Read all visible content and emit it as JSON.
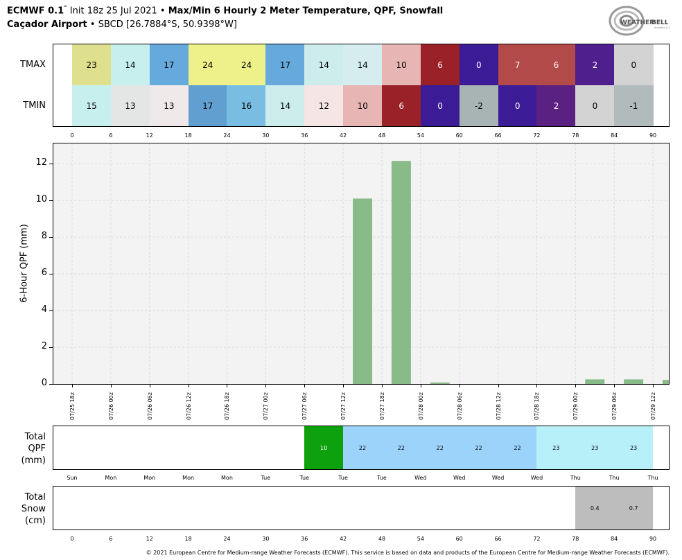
{
  "header": {
    "model": "ECMWF 0.1",
    "deg": "°",
    "init": "Init 18z 25 Jul 2021",
    "bullet": "•",
    "title": "Max/Min 6 Hourly 2 Meter Temperature,  QPF,  Snowfall",
    "location": "Caçador Airport",
    "station": "SBCD [26.7884°S, 50.9398°W]"
  },
  "logo": {
    "text_w": "WEATHER",
    "text_b": "BELL",
    "sub": "Analytics LLC"
  },
  "temp_table": {
    "row_labels": [
      "TMAX",
      "TMIN"
    ],
    "tmax": [
      23,
      14,
      17,
      24,
      24,
      17,
      14,
      14,
      10,
      6,
      0,
      7,
      6,
      2,
      0
    ],
    "tmax_colors": [
      "#dfe08e",
      "#c6efee",
      "#65a9dd",
      "#eef08a",
      "#eef08a",
      "#65a9dd",
      "#cdecec",
      "#d5edef",
      "#e8b5b5",
      "#9b2128",
      "#3b1c96",
      "#b34a4a",
      "#b34a4a",
      "#501f8e",
      "#d3d3d3"
    ],
    "tmin": [
      15,
      13,
      13,
      17,
      16,
      14,
      12,
      10,
      6,
      0,
      -2,
      0,
      2,
      0,
      -1
    ],
    "tmin_colors": [
      "#c6efee",
      "#e4e6e5",
      "#efe9e9",
      "#619fd0",
      "#79bde3",
      "#cdecec",
      "#f5e5e5",
      "#e8b5b5",
      "#9b2128",
      "#3b1c96",
      "#a8b4b4",
      "#3b1c96",
      "#5a2183",
      "#d3d3d3",
      "#b2bbbb"
    ],
    "text_colors_dark": [
      9,
      10,
      11,
      12,
      13
    ],
    "hour_ticks": [
      "0",
      "6",
      "12",
      "18",
      "24",
      "30",
      "36",
      "42",
      "48",
      "54",
      "60",
      "66",
      "72",
      "78",
      "84",
      "90"
    ]
  },
  "chart_data": {
    "type": "bar",
    "ylabel": "6-Hour QPF (mm)",
    "ylim": [
      0,
      13.1
    ],
    "yticks": [
      0,
      2,
      4,
      6,
      8,
      10,
      12
    ],
    "grid": true,
    "bar_color": "#88bb88",
    "categories": [
      "07/25 18z",
      "07/26 00z",
      "07/26 06z",
      "07/26 12z",
      "07/26 18z",
      "07/27 00z",
      "07/27 06z",
      "07/27 12z",
      "07/27 18z",
      "07/28 00z",
      "07/28 06z",
      "07/28 12z",
      "07/28 18z",
      "07/29 00z",
      "07/29 06z",
      "07/29 12z"
    ],
    "values": [
      0,
      0,
      0,
      0,
      0,
      0,
      0,
      10.1,
      12.15,
      0.08,
      0,
      0,
      0,
      0.25,
      0.25,
      0.22
    ]
  },
  "total_qpf": {
    "label_lines": [
      "Total",
      "QPF",
      "(mm)"
    ],
    "segments": [
      {
        "from": 6,
        "to": 7,
        "color": "#0ea10e",
        "text_color": "#ffffff"
      },
      {
        "from": 7,
        "to": 12,
        "color": "#9cd3fb",
        "text_color": "#000000"
      },
      {
        "from": 12,
        "to": 15,
        "color": "#b7f0f8",
        "text_color": "#000000"
      }
    ],
    "values": [
      {
        "pos": 7,
        "text": "10"
      },
      {
        "pos": 8,
        "text": "22"
      },
      {
        "pos": 9,
        "text": "22"
      },
      {
        "pos": 10,
        "text": "22"
      },
      {
        "pos": 11,
        "text": "22"
      },
      {
        "pos": 12,
        "text": "22"
      },
      {
        "pos": 13,
        "text": "23"
      },
      {
        "pos": 14,
        "text": "23"
      },
      {
        "pos": 15,
        "text": "23"
      }
    ],
    "day_ticks": [
      "Sun",
      "Mon",
      "Mon",
      "Mon",
      "Mon",
      "Tue",
      "Tue",
      "Tue",
      "Tue",
      "Wed",
      "Wed",
      "Wed",
      "Wed",
      "Thu",
      "Thu",
      "Thu"
    ]
  },
  "total_snow": {
    "label_lines": [
      "Total",
      "Snow",
      "(cm)"
    ],
    "segments": [
      {
        "from": 13,
        "to": 15,
        "color": "#bdbdbd"
      }
    ],
    "values": [
      {
        "pos": 14,
        "text": "0.4"
      },
      {
        "pos": 15,
        "text": "0.7"
      }
    ],
    "hour_ticks": [
      "0",
      "6",
      "12",
      "18",
      "24",
      "30",
      "36",
      "42",
      "48",
      "54",
      "60",
      "66",
      "72",
      "78",
      "84",
      "90"
    ]
  },
  "footer": "© 2021 European Centre for Medium-range Weather Forecasts (ECMWF). This service is based on data and products of the European Centre for Medium-range Weather Forecasts (ECMWF)."
}
